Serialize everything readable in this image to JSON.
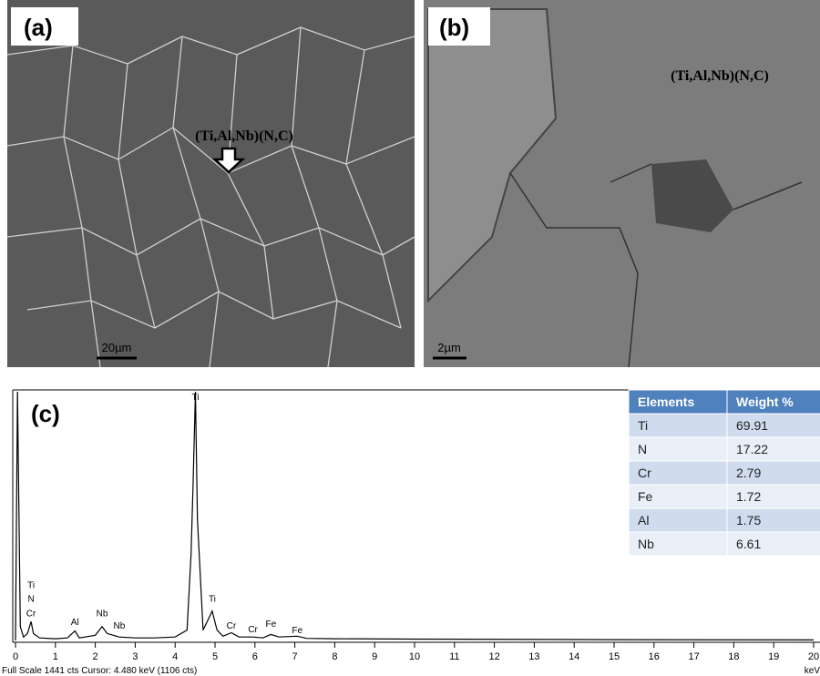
{
  "panels": [
    {
      "label": "(a)",
      "phase": "(Ti,Al,Nb)(N,C)",
      "scale": "20µm"
    },
    {
      "label": "(b)",
      "phase": "(Ti,Al,Nb)(N,C)",
      "scale": "2µm"
    }
  ],
  "chart_data": {
    "type": "line",
    "label": "(c)",
    "x": [
      0.0,
      0.05,
      0.12,
      0.2,
      0.3,
      0.39,
      0.45,
      0.6,
      1.0,
      1.3,
      1.49,
      1.6,
      2.0,
      2.17,
      2.3,
      2.6,
      3.0,
      3.5,
      4.0,
      4.3,
      4.4,
      4.45,
      4.51,
      4.56,
      4.7,
      4.93,
      5.05,
      5.2,
      5.41,
      5.6,
      5.95,
      6.2,
      6.4,
      6.6,
      7.06,
      7.3,
      8.0,
      10.0,
      15.0,
      20.0
    ],
    "values": [
      0,
      1441,
      80,
      20,
      40,
      110,
      40,
      15,
      10,
      15,
      55,
      15,
      30,
      80,
      40,
      20,
      15,
      15,
      20,
      60,
      500,
      900,
      1441,
      700,
      60,
      170,
      60,
      25,
      45,
      20,
      20,
      15,
      35,
      20,
      25,
      12,
      10,
      8,
      5,
      3
    ],
    "color": "#000000",
    "xlim": [
      0,
      20
    ],
    "ylim": [
      0,
      1441
    ],
    "xticks": [
      0,
      1,
      2,
      3,
      4,
      5,
      6,
      7,
      8,
      9,
      10,
      11,
      12,
      13,
      14,
      15,
      16,
      17,
      18,
      19,
      20
    ],
    "xlabel": "keV",
    "footer": "Full Scale 1441 cts  Cursor: 4.480 keV (1106 cts)",
    "annotations": [
      {
        "text": "Ti",
        "x": 0.39,
        "y": 304
      },
      {
        "text": "N",
        "x": 0.39,
        "y": 225
      },
      {
        "text": "Cr",
        "x": 0.39,
        "y": 141
      },
      {
        "text": "Al",
        "x": 1.49,
        "y": 89
      },
      {
        "text": "Nb",
        "x": 2.17,
        "y": 141
      },
      {
        "text": "Nb",
        "x": 2.6,
        "y": 68
      },
      {
        "text": "Ti",
        "x": 4.51,
        "y": 1394
      },
      {
        "text": "Ti",
        "x": 4.93,
        "y": 225
      },
      {
        "text": "Cr",
        "x": 5.41,
        "y": 68
      },
      {
        "text": "Cr",
        "x": 5.95,
        "y": 47
      },
      {
        "text": "Fe",
        "x": 6.4,
        "y": 79
      },
      {
        "text": "Fe",
        "x": 7.06,
        "y": 42
      }
    ]
  },
  "table": {
    "header": [
      "Elements",
      "Weight %"
    ],
    "rows": [
      [
        "Ti",
        "69.91"
      ],
      [
        "N",
        "17.22"
      ],
      [
        "Cr",
        "2.79"
      ],
      [
        "Fe",
        "1.72"
      ],
      [
        "Al",
        "1.75"
      ],
      [
        "Nb",
        "6.61"
      ]
    ]
  }
}
